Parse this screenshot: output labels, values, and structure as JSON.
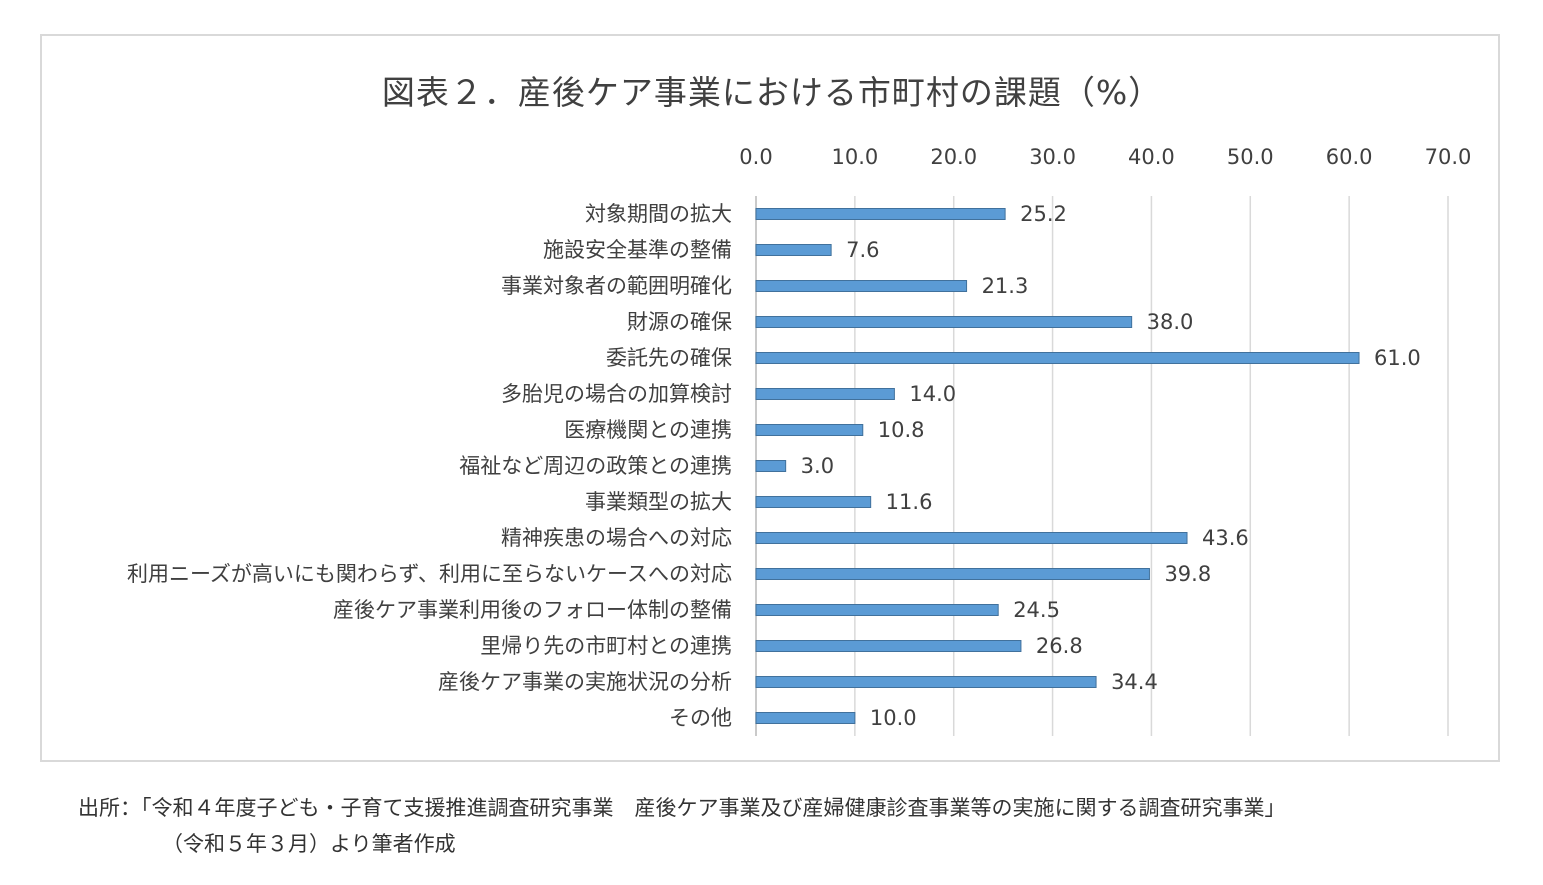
{
  "title": "図表２．産後ケア事業における市町村の課題（%）",
  "source": {
    "line1": "出所：「令和４年度子ども・子育て支援推進調査研究事業　産後ケア事業及び産婦健康診査事業等の実施に関する調査研究事業」",
    "line2": "（令和５年３月）より筆者作成"
  },
  "chart_data": {
    "type": "bar",
    "orientation": "horizontal",
    "title": "図表２．産後ケア事業における市町村の課題（%）",
    "xlabel": "",
    "ylabel": "",
    "xlim": [
      0,
      70
    ],
    "x_ticks": [
      "0.0",
      "10.0",
      "20.0",
      "30.0",
      "40.0",
      "50.0",
      "60.0",
      "70.0"
    ],
    "x_axis_position": "top",
    "grid": true,
    "legend": "none",
    "bar_color": "#5b9bd5",
    "categories": [
      "対象期間の拡大",
      "施設安全基準の整備",
      "事業対象者の範囲明確化",
      "財源の確保",
      "委託先の確保",
      "多胎児の場合の加算検討",
      "医療機関との連携",
      "福祉など周辺の政策との連携",
      "事業類型の拡大",
      "精神疾患の場合への対応",
      "利用ニーズが高いにも関わらず、利用に至らないケースへの対応",
      "産後ケア事業利用後のフォロー体制の整備",
      "里帰り先の市町村との連携",
      "産後ケア事業の実施状況の分析",
      "その他"
    ],
    "values": [
      25.2,
      7.6,
      21.3,
      38.0,
      61.0,
      14.0,
      10.8,
      3.0,
      11.6,
      43.6,
      39.8,
      24.5,
      26.8,
      34.4,
      10.0
    ],
    "value_labels": [
      "25.2",
      "7.6",
      "21.3",
      "38.0",
      "61.0",
      "14.0",
      "10.8",
      "3.0",
      "11.6",
      "43.6",
      "39.8",
      "24.5",
      "26.8",
      "34.4",
      "10.0"
    ]
  }
}
